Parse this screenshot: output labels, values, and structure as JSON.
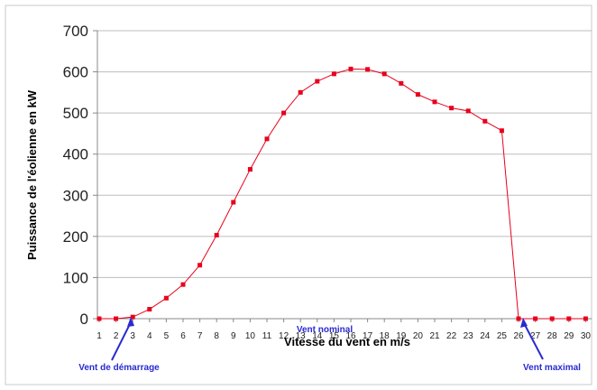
{
  "chart_data": {
    "type": "line",
    "title": "",
    "xlabel": "Vitesse du vent en m/s",
    "ylabel": "Puissance de l'éolienne en kW",
    "x": [
      1,
      2,
      3,
      4,
      5,
      6,
      7,
      8,
      9,
      10,
      11,
      12,
      13,
      14,
      15,
      16,
      17,
      18,
      19,
      20,
      21,
      22,
      23,
      24,
      25,
      26,
      27,
      28,
      29,
      30
    ],
    "xlim": [
      1,
      30
    ],
    "ylim": [
      0,
      700
    ],
    "yticks": [
      0,
      100,
      200,
      300,
      400,
      500,
      600,
      700
    ],
    "grid": "horizontal",
    "legend": "none",
    "series": [
      {
        "color": "#e8001c",
        "values": [
          0,
          0,
          4,
          23,
          50,
          83,
          130,
          203,
          283,
          363,
          437,
          500,
          550,
          577,
          595,
          607,
          606,
          595,
          572,
          545,
          527,
          512,
          505,
          480,
          457,
          0,
          0,
          0,
          0,
          0
        ]
      }
    ],
    "annotations": [
      {
        "text": "Vent de démarrage",
        "x": 3,
        "color": "#2a2ad0"
      },
      {
        "text": "Vent nominal",
        "x": 16,
        "color": "#2a2ad0"
      },
      {
        "text": "Vent maximal",
        "x": 26,
        "color": "#2a2ad0"
      }
    ]
  }
}
